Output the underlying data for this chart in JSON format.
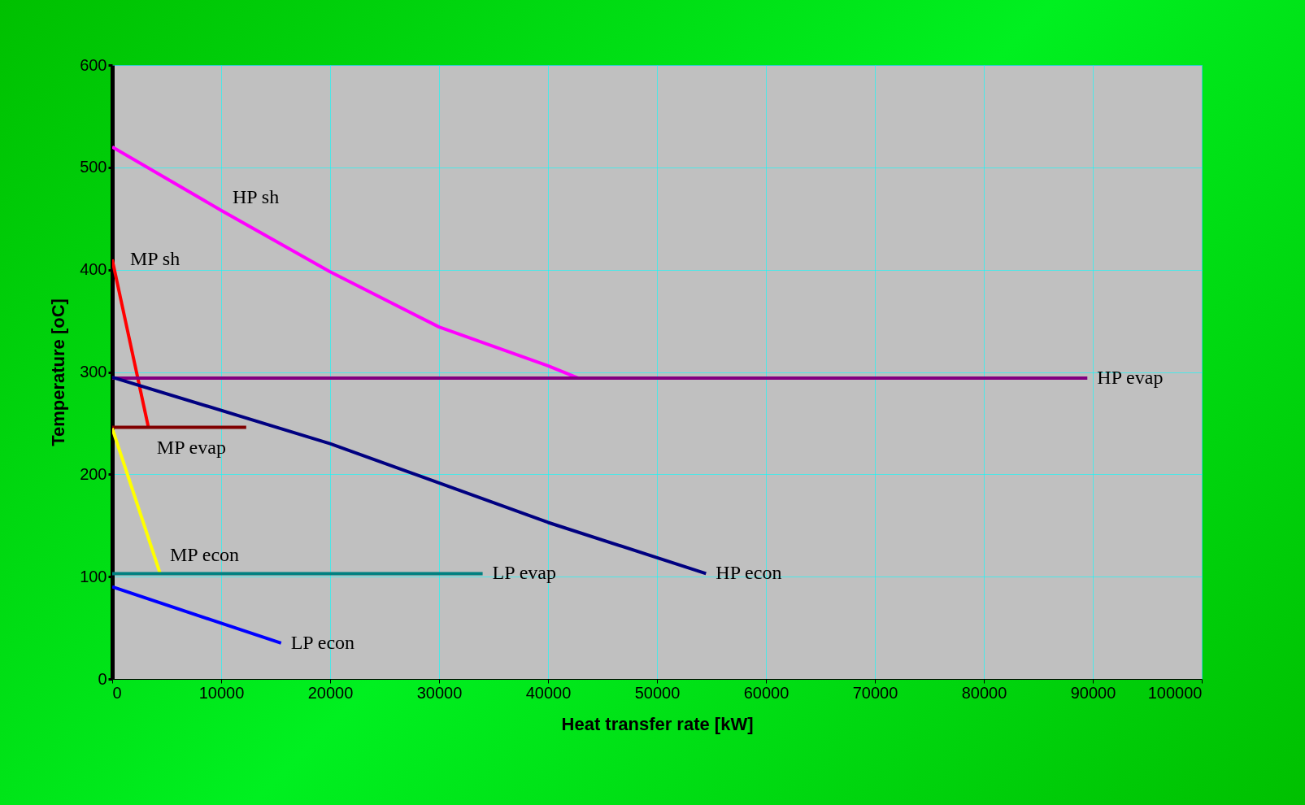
{
  "chart_data": {
    "type": "line",
    "xlabel": "Heat transfer rate [kW]",
    "ylabel": "Temperature [oC]",
    "xlim": [
      0,
      100000
    ],
    "xticks": [
      0,
      10000,
      20000,
      30000,
      40000,
      50000,
      60000,
      70000,
      80000,
      90000,
      100000
    ],
    "ylim": [
      0,
      600
    ],
    "yticks": [
      0,
      100,
      200,
      300,
      400,
      500,
      600
    ],
    "grid": true,
    "series": [
      {
        "name": "HP sh",
        "color": "#ff00ff",
        "x": [
          0,
          10000,
          20000,
          30000,
          40000,
          42800
        ],
        "values": [
          520,
          458,
          398,
          344,
          306,
          294
        ]
      },
      {
        "name": "MP sh",
        "color": "#ff0000",
        "x": [
          0,
          3300
        ],
        "values": [
          410,
          247
        ]
      },
      {
        "name": "HP evap",
        "color": "#800080",
        "x": [
          0,
          89500
        ],
        "values": [
          294,
          294
        ]
      },
      {
        "name": "MP evap",
        "color": "#800000",
        "x": [
          0,
          12300
        ],
        "values": [
          246,
          246
        ]
      },
      {
        "name": "HP econ",
        "color": "#000080",
        "x": [
          0,
          20000,
          40000,
          54500
        ],
        "values": [
          295,
          230,
          153,
          103
        ]
      },
      {
        "name": "MP econ",
        "color": "#ffff00",
        "x": [
          0,
          4400
        ],
        "values": [
          245,
          103
        ]
      },
      {
        "name": "LP evap",
        "color": "#008080",
        "x": [
          0,
          34000
        ],
        "values": [
          103,
          103
        ]
      },
      {
        "name": "LP econ",
        "color": "#0000ff",
        "x": [
          0,
          15500
        ],
        "values": [
          90,
          35
        ]
      }
    ]
  }
}
